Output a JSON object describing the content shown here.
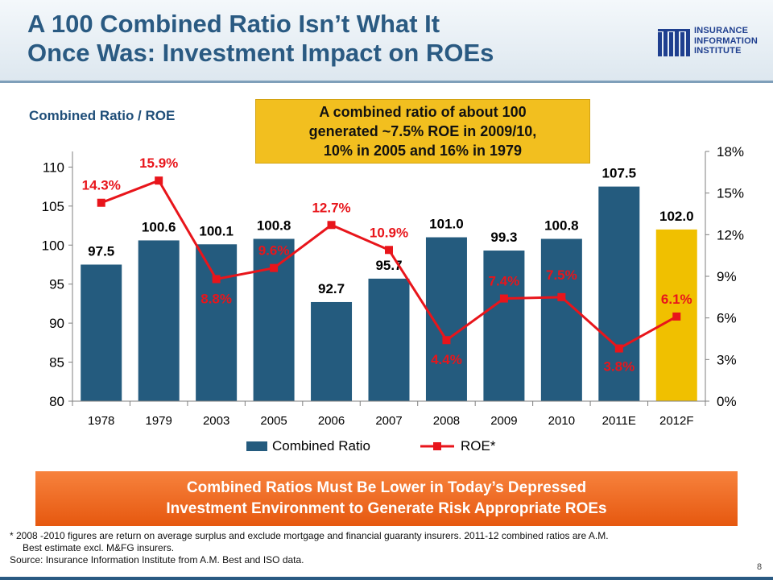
{
  "slide": {
    "title_line1": "A 100 Combined Ratio Isn’t What It",
    "title_line2": "Once Was: Investment Impact on ROEs",
    "left_label": "Combined Ratio / ROE",
    "callout_line1": "A combined ratio of about 100",
    "callout_line2": "generated ~7.5% ROE in 2009/10,",
    "callout_line3": "10% in 2005 and 16% in 1979",
    "banner_line1": "Combined Ratios Must Be Lower in Today’s Depressed",
    "banner_line2": "Investment Environment to Generate Risk Appropriate ROEs",
    "footnote_line1": "* 2008 -2010 figures  are return on average surplus and exclude mortgage and financial guaranty insurers. 2011-12 combined ratios are A.M.",
    "footnote_line2": "Best estimate excl. M&FG insurers.",
    "source": "Source: Insurance Information Institute from A.M. Best and ISO data.",
    "page_number": "8"
  },
  "logo": {
    "line1": "INSURANCE",
    "line2": "INFORMATION",
    "line3": "INSTITUTE",
    "color": "#1f3f8f"
  },
  "colors": {
    "bar": "#245b7e",
    "bar_highlight": "#f0c000",
    "roe_line": "#e8151b",
    "title": "#2a5a82",
    "banner": "#ee6a22",
    "callout": "#f2bf1f"
  },
  "chart_data": {
    "type": "bar",
    "categories": [
      "1978",
      "1979",
      "2003",
      "2005",
      "2006",
      "2007",
      "2008",
      "2009",
      "2010",
      "2011E",
      "2012F"
    ],
    "series": [
      {
        "name": "Combined Ratio",
        "type": "bar",
        "axis": "left",
        "values": [
          97.5,
          100.6,
          100.1,
          100.8,
          92.7,
          95.7,
          101.0,
          99.3,
          100.8,
          107.5,
          102.0
        ],
        "labels": [
          "97.5",
          "100.6",
          "100.1",
          "100.8",
          "92.7",
          "95.7",
          "101.0",
          "99.3",
          "100.8",
          "107.5",
          "102.0"
        ],
        "highlight_index": 10
      },
      {
        "name": "ROE*",
        "type": "line",
        "axis": "right",
        "values": [
          14.3,
          15.9,
          8.8,
          9.6,
          12.7,
          10.9,
          4.4,
          7.4,
          7.5,
          3.8,
          6.1
        ],
        "labels": [
          "14.3%",
          "15.9%",
          "8.8%",
          "9.6%",
          "12.7%",
          "10.9%",
          "4.4%",
          "7.4%",
          "7.5%",
          "3.8%",
          "6.1%"
        ]
      }
    ],
    "y_left": {
      "min": 80,
      "max": 112,
      "ticks": [
        80,
        85,
        90,
        95,
        100,
        105,
        110
      ]
    },
    "y_right": {
      "min": 0,
      "max": 18,
      "ticks": [
        "0%",
        "3%",
        "6%",
        "9%",
        "12%",
        "15%",
        "18%"
      ],
      "tick_values": [
        0,
        3,
        6,
        9,
        12,
        15,
        18
      ]
    },
    "legend": {
      "placement": "bottom",
      "items": [
        "Combined Ratio",
        "ROE*"
      ]
    }
  }
}
